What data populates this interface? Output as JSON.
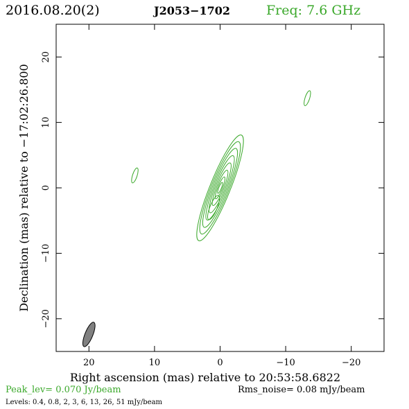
{
  "header": {
    "date": "2016.08.20(2)",
    "source": "J2053−1702",
    "freq": "Freq: 7.6 GHz"
  },
  "footer": {
    "peak": "Peak_lev=  0.070 Jy/beam",
    "rms": "Rms_noise= 0.08 mJy/beam",
    "levels": "Levels: 0.4, 0.8,    2,    3,    6,   13,   26,   51 mJy/beam"
  },
  "colors": {
    "contour": "#3aa82a",
    "beam": "#808080",
    "axis": "#000000"
  },
  "chart_data": {
    "type": "contour",
    "title": "",
    "xlabel": "Right ascension (mas) relative to 20:53:58.6822",
    "ylabel": "Declination (mas) relative to −17:02:26.800",
    "xlim": [
      25,
      -25
    ],
    "ylim": [
      -25,
      25
    ],
    "xticks": [
      20,
      10,
      0,
      -10,
      -20
    ],
    "yticks": [
      -20,
      -10,
      0,
      10,
      20
    ],
    "xticklabels": [
      "20",
      "10",
      "0",
      "−10",
      "−20"
    ],
    "yticklabels": [
      "−20",
      "−10",
      "0",
      "10",
      "20"
    ],
    "levels_mJy_per_beam": [
      0.4,
      0.8,
      2,
      3,
      6,
      13,
      26,
      51
    ],
    "peak_Jy_per_beam": 0.07,
    "rms_noise_mJy_per_beam": 0.08,
    "components": [
      {
        "x": 0,
        "y": 0,
        "rings": [
          {
            "a": 8.7,
            "b": 1.55,
            "pa": 22
          },
          {
            "a": 7.6,
            "b": 1.35,
            "pa": 22
          },
          {
            "a": 6.5,
            "b": 1.15,
            "pa": 22
          },
          {
            "a": 5.3,
            "b": 0.95,
            "pa": 22
          },
          {
            "a": 4.1,
            "b": 0.75,
            "pa": 22
          },
          {
            "a": 2.9,
            "b": 0.55,
            "pa": 22
          },
          {
            "a": 1.8,
            "b": 0.36,
            "pa": 22
          },
          {
            "a": 0.9,
            "b": 0.2,
            "pa": 22
          }
        ]
      },
      {
        "x": 1.0,
        "y": -3.0,
        "rings": [
          {
            "a": 2.0,
            "b": 0.55,
            "pa": 22
          }
        ]
      },
      {
        "x": 13.0,
        "y": 1.9,
        "rings": [
          {
            "a": 1.2,
            "b": 0.35,
            "pa": 18
          }
        ]
      },
      {
        "x": -13.3,
        "y": 13.7,
        "rings": [
          {
            "a": 1.2,
            "b": 0.35,
            "pa": 18
          }
        ]
      }
    ],
    "beam": {
      "x": 20.0,
      "y": -22.4,
      "major": 4.0,
      "minor": 1.2,
      "pa": 22
    }
  }
}
